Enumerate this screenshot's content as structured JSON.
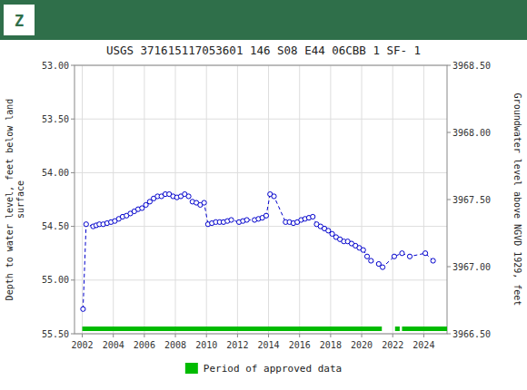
{
  "chart_data": {
    "type": "line",
    "title": "USGS 371615117053601 146  S08 E44 06CBB 1    SF- 1",
    "annotations": [
      "Z"
    ],
    "y_label": "Depth to water level, feet below land\nsurface",
    "y2_label": "Groundwater level above NGVD 1929, feet",
    "grid": true,
    "legend": "bottom",
    "xlim": [
      2001.5,
      2025.5
    ],
    "xticks": [
      2002,
      2004,
      2006,
      2008,
      2010,
      2012,
      2014,
      2016,
      2018,
      2020,
      2022,
      2024
    ],
    "ylim": [
      55.5,
      53.0
    ],
    "yticks": [
      {
        "value": 53.0,
        "label": "53.00"
      },
      {
        "value": 53.5,
        "label": "53.50"
      },
      {
        "value": 54.0,
        "label": "54.00"
      },
      {
        "value": 54.5,
        "label": "54.50"
      },
      {
        "value": 55.0,
        "label": "55.00"
      },
      {
        "value": 55.5,
        "label": "55.50"
      }
    ],
    "y2lim": [
      3966.5,
      3968.5
    ],
    "y2ticks": [
      {
        "value": 3966.5,
        "label": "3966.50"
      },
      {
        "value": 3967.0,
        "label": "3967.00"
      },
      {
        "value": 3967.5,
        "label": "3967.50"
      },
      {
        "value": 3968.0,
        "label": "3968.00"
      },
      {
        "value": 3968.5,
        "label": "3968.50"
      }
    ],
    "x": [
      2002.05,
      2002.25,
      2002.7,
      2002.9,
      2003.1,
      2003.35,
      2003.6,
      2003.85,
      2004.1,
      2004.35,
      2004.6,
      2004.85,
      2005.1,
      2005.35,
      2005.6,
      2005.85,
      2006.1,
      2006.35,
      2006.6,
      2006.85,
      2007.1,
      2007.35,
      2007.6,
      2007.85,
      2008.1,
      2008.35,
      2008.6,
      2008.85,
      2009.1,
      2009.35,
      2009.6,
      2009.85,
      2010.1,
      2010.35,
      2010.6,
      2010.85,
      2011.1,
      2011.35,
      2011.6,
      2012.1,
      2012.35,
      2012.6,
      2013.1,
      2013.35,
      2013.6,
      2013.85,
      2014.1,
      2014.35,
      2015.1,
      2015.35,
      2015.6,
      2015.85,
      2016.1,
      2016.35,
      2016.6,
      2016.85,
      2017.1,
      2017.35,
      2017.6,
      2017.85,
      2018.1,
      2018.35,
      2018.6,
      2018.85,
      2019.1,
      2019.35,
      2019.6,
      2019.85,
      2020.1,
      2020.35,
      2020.6,
      2021.1,
      2021.35,
      2022.1,
      2022.6,
      2023.1,
      2024.1,
      2024.6
    ],
    "series": [
      {
        "color": "#0000cc",
        "marker": "circle",
        "line_style": "dashed",
        "values": [
          55.27,
          54.48,
          54.5,
          54.49,
          54.48,
          54.48,
          54.47,
          54.46,
          54.45,
          54.43,
          54.41,
          54.4,
          54.38,
          54.36,
          54.34,
          54.33,
          54.3,
          54.27,
          54.24,
          54.22,
          54.22,
          54.2,
          54.2,
          54.22,
          54.23,
          54.22,
          54.2,
          54.22,
          54.27,
          54.28,
          54.3,
          54.28,
          54.48,
          54.47,
          54.46,
          54.46,
          54.46,
          54.45,
          54.44,
          54.46,
          54.45,
          54.44,
          54.44,
          54.43,
          54.42,
          54.4,
          54.2,
          54.22,
          54.46,
          54.46,
          54.47,
          54.46,
          54.44,
          54.43,
          54.42,
          54.41,
          54.48,
          54.5,
          54.52,
          54.54,
          54.57,
          54.6,
          54.62,
          54.64,
          54.64,
          54.66,
          54.68,
          54.7,
          54.72,
          54.78,
          54.82,
          54.85,
          54.88,
          54.78,
          54.75,
          54.78,
          54.75,
          54.82
        ]
      }
    ],
    "periods": {
      "name": "Period of approved data",
      "color": "#00bb00",
      "segments": [
        [
          2002.0,
          2021.3
        ],
        [
          2022.15,
          2022.45
        ],
        [
          2022.6,
          2025.5
        ]
      ]
    }
  }
}
